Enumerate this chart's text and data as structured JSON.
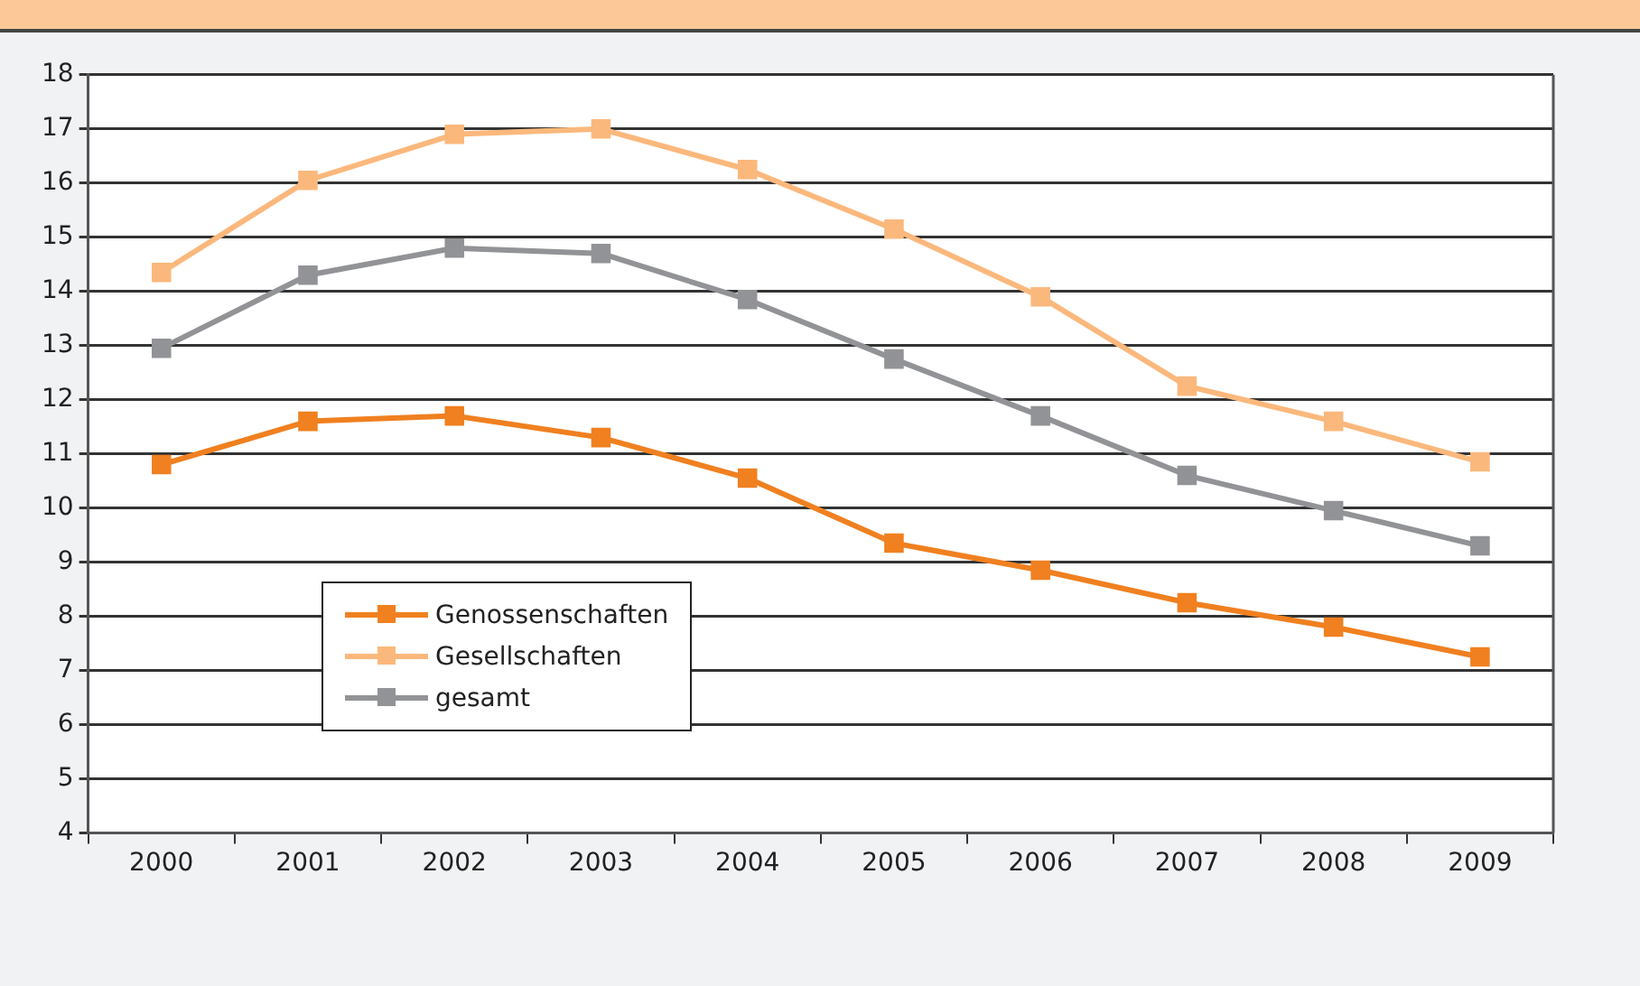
{
  "chart_data": {
    "type": "line",
    "categories": [
      "2000",
      "2001",
      "2002",
      "2003",
      "2004",
      "2005",
      "2006",
      "2007",
      "2008",
      "2009"
    ],
    "series": [
      {
        "name": "Genossenschaften",
        "color": "#f08020",
        "values": [
          10.8,
          11.6,
          11.7,
          11.3,
          10.55,
          9.35,
          8.85,
          8.25,
          7.8,
          7.25
        ]
      },
      {
        "name": "Gesellschaften",
        "color": "#fbb87c",
        "values": [
          14.35,
          16.05,
          16.9,
          17.0,
          16.25,
          15.15,
          13.9,
          12.25,
          11.6,
          10.85
        ]
      },
      {
        "name": "gesamt",
        "color": "#929396",
        "values": [
          12.95,
          14.3,
          14.8,
          14.7,
          13.85,
          12.75,
          11.7,
          10.6,
          9.95,
          9.3
        ]
      }
    ],
    "ylim": [
      4,
      18
    ],
    "yticks": [
      4,
      5,
      6,
      7,
      8,
      9,
      10,
      11,
      12,
      13,
      14,
      15,
      16,
      17,
      18
    ],
    "grid": "y",
    "legend": "bottom left",
    "marker": "square",
    "line_style": "solid"
  }
}
